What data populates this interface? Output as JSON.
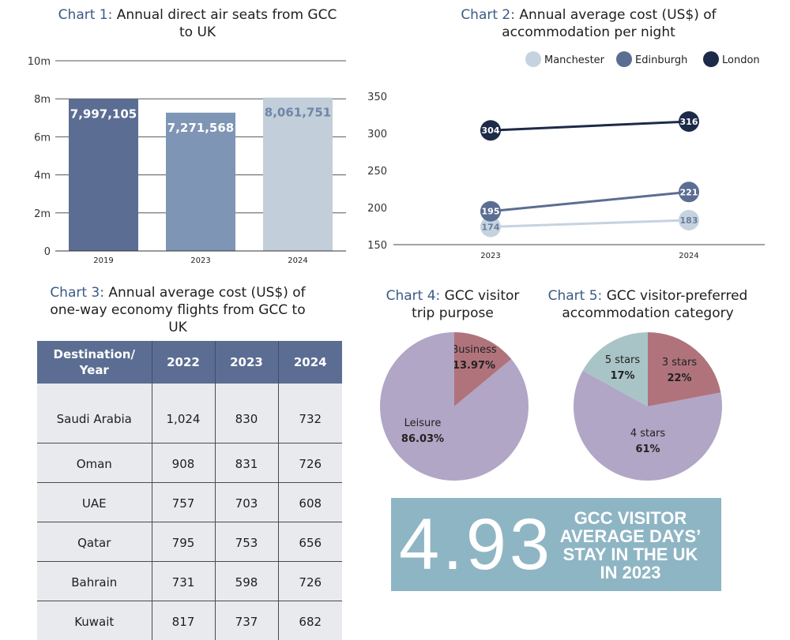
{
  "chart_data": [
    {
      "type": "bar",
      "title_num": "Chart 1:",
      "title": "Annual direct air seats from GCC to UK",
      "categories": [
        "2019",
        "2023",
        "2024"
      ],
      "values": [
        7997105,
        7271568,
        8061751
      ],
      "value_labels": [
        "7,997,105",
        "7,271,568",
        "8,061,751"
      ],
      "ytick_labels": [
        "0",
        "2m",
        "4m",
        "6m",
        "8m",
        "10m"
      ],
      "ylim": [
        0,
        10000000
      ],
      "colors": [
        "#5b6d92",
        "#7e95b5",
        "#c2ced9"
      ],
      "label_colors": [
        "#ffffff",
        "#ffffff",
        "#6e86a8"
      ],
      "grid": true
    },
    {
      "type": "line",
      "title_num": "Chart 2:",
      "title": "Annual average cost (US$) of accommodation per night",
      "x": [
        "2023",
        "2024"
      ],
      "ytick_labels": [
        "150",
        "200",
        "250",
        "300",
        "350"
      ],
      "ylim": [
        150,
        350
      ],
      "series": [
        {
          "name": "Manchester",
          "values": [
            174,
            183
          ],
          "color": "#c5d3e0",
          "text_color": "#6b7f9a"
        },
        {
          "name": "Edinburgh",
          "values": [
            195,
            221
          ],
          "color": "#5b6d92",
          "text_color": "#ffffff"
        },
        {
          "name": "London",
          "values": [
            304,
            316
          ],
          "color": "#1d2a48",
          "text_color": "#ffffff"
        }
      ],
      "legend_position": "top-right"
    },
    {
      "type": "table",
      "title_num": "Chart 3:",
      "title": "Annual average cost (US$) of one-way economy flights from GCC to UK",
      "headers": [
        "Destination/ Year",
        "2022",
        "2023",
        "2024"
      ],
      "rows": [
        [
          "Saudi Arabia",
          "1,024",
          "830",
          "732"
        ],
        [
          "Oman",
          "908",
          "831",
          "726"
        ],
        [
          "UAE",
          "757",
          "703",
          "608"
        ],
        [
          "Qatar",
          "795",
          "753",
          "656"
        ],
        [
          "Bahrain",
          "731",
          "598",
          "726"
        ],
        [
          "Kuwait",
          "817",
          "737",
          "682"
        ]
      ]
    },
    {
      "type": "pie",
      "title_num": "Chart 4:",
      "title": "GCC visitor trip purpose",
      "slices": [
        {
          "label": "Business",
          "value": 13.97,
          "value_label": "13.97%",
          "color": "#b0737c"
        },
        {
          "label": "Leisure",
          "value": 86.03,
          "value_label": "86.03%",
          "color": "#b1a6c5"
        }
      ]
    },
    {
      "type": "pie",
      "title_num": "Chart 5:",
      "title": "GCC visitor-preferred accommodation category",
      "slices": [
        {
          "label": "3 stars",
          "value": 22,
          "value_label": "22%",
          "color": "#b0737c"
        },
        {
          "label": "4 stars",
          "value": 61,
          "value_label": "61%",
          "color": "#b1a6c5"
        },
        {
          "label": "5 stars",
          "value": 17,
          "value_label": "17%",
          "color": "#a9c4c6"
        }
      ]
    }
  ],
  "stat": {
    "number": "4.93",
    "lines": [
      "GCC VISITOR",
      "AVERAGE DAYS’",
      "STAY IN THE UK",
      "IN 2023"
    ]
  }
}
